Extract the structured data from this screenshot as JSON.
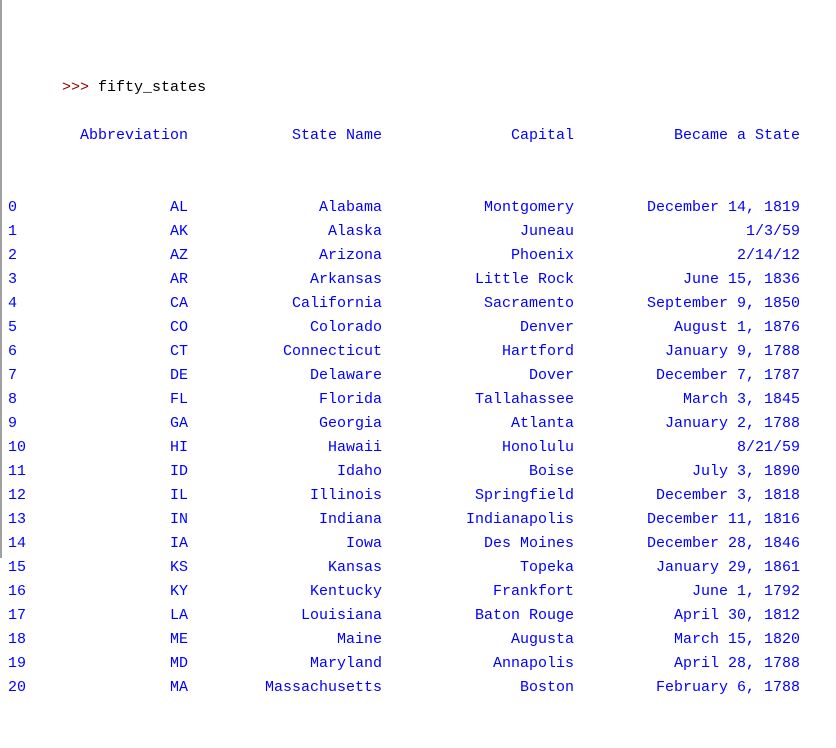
{
  "console": {
    "prompt": ">>>",
    "command": "fifty_states"
  },
  "table": {
    "columns": [
      "Abbreviation",
      "State Name",
      "Capital",
      "Became a State"
    ],
    "rows": [
      {
        "index": "0",
        "abbr": "AL",
        "name": "Alabama",
        "capital": "Montgomery",
        "date": "December 14, 1819"
      },
      {
        "index": "1",
        "abbr": "AK",
        "name": "Alaska",
        "capital": "Juneau",
        "date": "1/3/59"
      },
      {
        "index": "2",
        "abbr": "AZ",
        "name": "Arizona",
        "capital": "Phoenix",
        "date": "2/14/12"
      },
      {
        "index": "3",
        "abbr": "AR",
        "name": "Arkansas",
        "capital": "Little Rock",
        "date": "June 15, 1836"
      },
      {
        "index": "4",
        "abbr": "CA",
        "name": "California",
        "capital": "Sacramento",
        "date": "September 9, 1850"
      },
      {
        "index": "5",
        "abbr": "CO",
        "name": "Colorado",
        "capital": "Denver",
        "date": "August 1, 1876"
      },
      {
        "index": "6",
        "abbr": "CT",
        "name": "Connecticut",
        "capital": "Hartford",
        "date": "January 9, 1788"
      },
      {
        "index": "7",
        "abbr": "DE",
        "name": "Delaware",
        "capital": "Dover",
        "date": "December 7, 1787"
      },
      {
        "index": "8",
        "abbr": "FL",
        "name": "Florida",
        "capital": "Tallahassee",
        "date": "March 3, 1845"
      },
      {
        "index": "9",
        "abbr": "GA",
        "name": "Georgia",
        "capital": "Atlanta",
        "date": "January 2, 1788"
      },
      {
        "index": "10",
        "abbr": "HI",
        "name": "Hawaii",
        "capital": "Honolulu",
        "date": "8/21/59"
      },
      {
        "index": "11",
        "abbr": "ID",
        "name": "Idaho",
        "capital": "Boise",
        "date": "July 3, 1890"
      },
      {
        "index": "12",
        "abbr": "IL",
        "name": "Illinois",
        "capital": "Springfield",
        "date": "December 3, 1818"
      },
      {
        "index": "13",
        "abbr": "IN",
        "name": "Indiana",
        "capital": "Indianapolis",
        "date": "December 11, 1816"
      },
      {
        "index": "14",
        "abbr": "IA",
        "name": "Iowa",
        "capital": "Des Moines",
        "date": "December 28, 1846"
      },
      {
        "index": "15",
        "abbr": "KS",
        "name": "Kansas",
        "capital": "Topeka",
        "date": "January 29, 1861"
      },
      {
        "index": "16",
        "abbr": "KY",
        "name": "Kentucky",
        "capital": "Frankfort",
        "date": "June 1, 1792"
      },
      {
        "index": "17",
        "abbr": "LA",
        "name": "Louisiana",
        "capital": "Baton Rouge",
        "date": "April 30, 1812"
      },
      {
        "index": "18",
        "abbr": "ME",
        "name": "Maine",
        "capital": "Augusta",
        "date": "March 15, 1820"
      },
      {
        "index": "19",
        "abbr": "MD",
        "name": "Maryland",
        "capital": "Annapolis",
        "date": "April 28, 1788"
      },
      {
        "index": "20",
        "abbr": "MA",
        "name": "Massachusetts",
        "capital": "Boston",
        "date": "February 6, 1788"
      }
    ]
  },
  "colors": {
    "prompt": "#8b0000",
    "output": "#0000ff",
    "command": "#000000",
    "background": "#ffffff"
  }
}
